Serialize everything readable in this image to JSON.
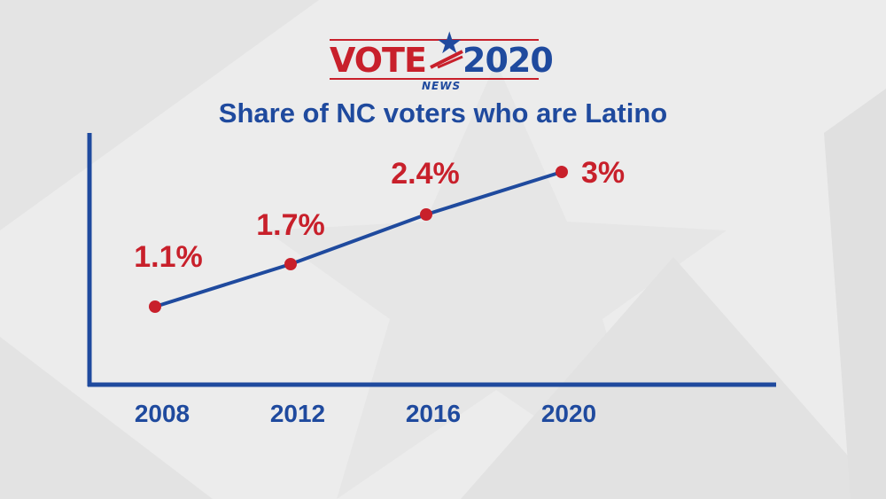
{
  "logo": {
    "vote": "VOTE",
    "year": "2020",
    "station": "NEWS"
  },
  "colors": {
    "accent_red": "#c8202b",
    "brand_blue": "#1f4a9e",
    "background": "#ececec"
  },
  "chart_data": {
    "type": "line",
    "title": "Share of NC voters who are Latino",
    "categories": [
      "2008",
      "2012",
      "2016",
      "2020"
    ],
    "values": [
      1.1,
      1.7,
      2.4,
      3.0
    ],
    "labels": [
      "1.1%",
      "1.7%",
      "2.4%",
      "3%"
    ],
    "xlabel": "",
    "ylabel": "",
    "ylim": [
      0,
      3.6
    ],
    "grid": false,
    "legend": "none"
  }
}
